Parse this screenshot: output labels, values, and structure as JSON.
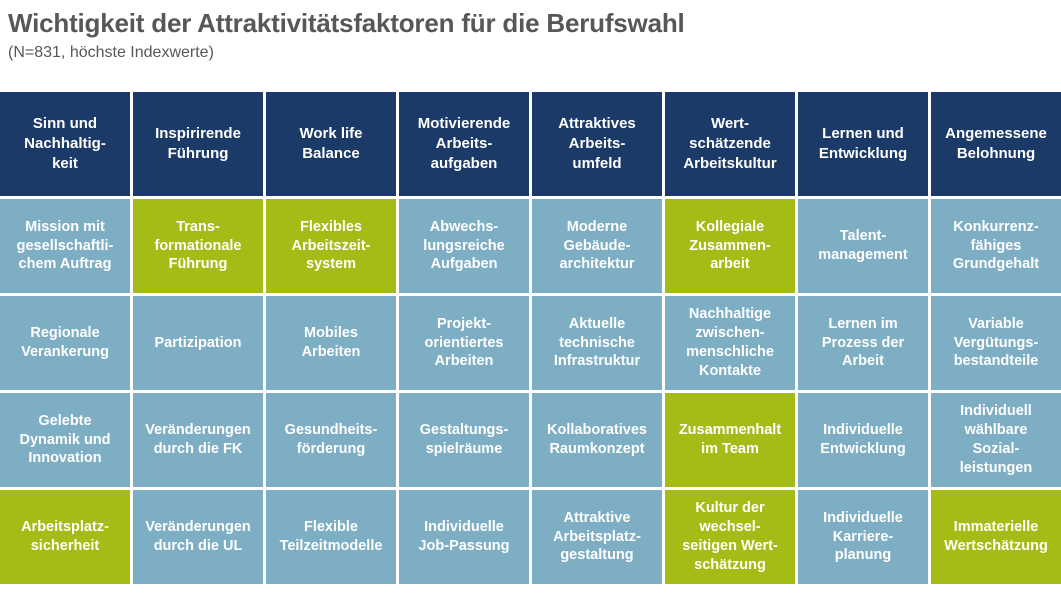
{
  "title": "Wichtigkeit der Attraktivitätsfaktoren für die Berufswahl",
  "subtitle": "(N=831, höchste Indexwerte)",
  "colors": {
    "header_bg": "#1b3a67",
    "cell_bg": "#7eaec3",
    "highlight_bg": "#a5bb16",
    "cell_text": "#ffffff",
    "title_text": "#575756"
  },
  "table": {
    "headers": [
      {
        "label": "Sinn und\nNachhaltig-\nkeit"
      },
      {
        "label": "Inspirirende\nFührung"
      },
      {
        "label": "Work life\nBalance"
      },
      {
        "label": "Motivierende\nArbeits-\naufgaben"
      },
      {
        "label": "Attraktives\nArbeits-\numfeld"
      },
      {
        "label": "Wert-\nschätzende\nArbeitskultur"
      },
      {
        "label": "Lernen und\nEntwicklung"
      },
      {
        "label": "Angemessene\nBelohnung"
      }
    ],
    "rows": [
      {
        "cells": [
          {
            "label": "Mission mit\ngesellschaftli-\nchem Auftrag",
            "highlight": false
          },
          {
            "label": "Trans-\nformationale\nFührung",
            "highlight": true
          },
          {
            "label": "Flexibles\nArbeitszeit-\nsystem",
            "highlight": true
          },
          {
            "label": "Abwechs-\nlungsreiche\nAufgaben",
            "highlight": false
          },
          {
            "label": "Moderne\nGebäude-\narchitektur",
            "highlight": false
          },
          {
            "label": "Kollegiale\nZusammen-\narbeit",
            "highlight": true
          },
          {
            "label": "Talent-\nmanagement",
            "highlight": false
          },
          {
            "label": "Konkurrenz-\nfähiges\nGrundgehalt",
            "highlight": false
          }
        ]
      },
      {
        "cells": [
          {
            "label": "Regionale\nVerankerung",
            "highlight": false
          },
          {
            "label": "Partizipation",
            "highlight": false
          },
          {
            "label": "Mobiles\nArbeiten",
            "highlight": false
          },
          {
            "label": "Projekt-\norientiertes\nArbeiten",
            "highlight": false
          },
          {
            "label": "Aktuelle\ntechnische\nInfrastruktur",
            "highlight": false
          },
          {
            "label": "Nachhaltige\nzwischen-\nmenschliche\nKontakte",
            "highlight": false
          },
          {
            "label": "Lernen im\nProzess der\nArbeit",
            "highlight": false
          },
          {
            "label": "Variable\nVergütungs-\nbestandteile",
            "highlight": false
          }
        ]
      },
      {
        "cells": [
          {
            "label": "Gelebte\nDynamik und\nInnovation",
            "highlight": false
          },
          {
            "label": "Veränderungen\ndurch die FK",
            "highlight": false
          },
          {
            "label": "Gesundheits-\nförderung",
            "highlight": false
          },
          {
            "label": "Gestaltungs-\nspielräume",
            "highlight": false
          },
          {
            "label": "Kollaboratives\nRaumkonzept",
            "highlight": false
          },
          {
            "label": "Zusammenhalt\nim Team",
            "highlight": true
          },
          {
            "label": "Individuelle\nEntwicklung",
            "highlight": false
          },
          {
            "label": "Individuell\nwählbare\nSozial-\nleistungen",
            "highlight": false
          }
        ]
      },
      {
        "cells": [
          {
            "label": "Arbeitsplatz-\nsicherheit",
            "highlight": true
          },
          {
            "label": "Veränderungen\ndurch die UL",
            "highlight": false
          },
          {
            "label": "Flexible\nTeilzeitmodelle",
            "highlight": false
          },
          {
            "label": "Individuelle\nJob-Passung",
            "highlight": false
          },
          {
            "label": "Attraktive\nArbeitsplatz-\ngestaltung",
            "highlight": false
          },
          {
            "label": "Kultur der\nwechsel-\nseitigen Wert-\nschätzung",
            "highlight": true
          },
          {
            "label": "Individuelle\nKarriere-\nplanung",
            "highlight": false
          },
          {
            "label": "Immaterielle\nWertschätzung",
            "highlight": true
          }
        ]
      }
    ]
  }
}
